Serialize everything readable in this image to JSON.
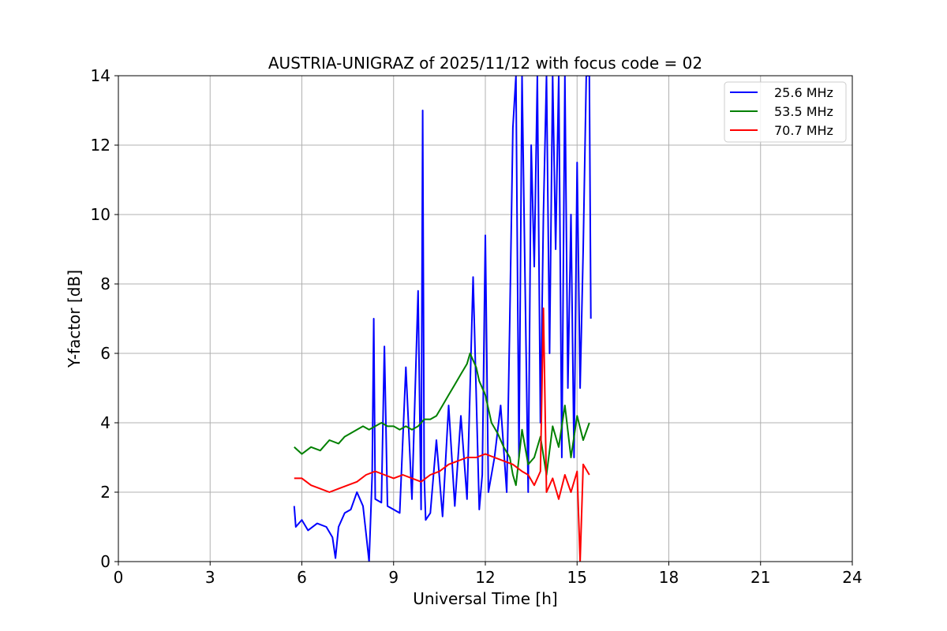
{
  "chart_data": {
    "type": "line",
    "title": "AUSTRIA-UNIGRAZ of 2025/11/12 with focus code = 02",
    "xlabel": "Universal Time [h]",
    "ylabel": "Y-factor [dB]",
    "xlim": [
      0,
      24
    ],
    "ylim": [
      0,
      14
    ],
    "xticks": [
      0,
      3,
      6,
      9,
      12,
      15,
      18,
      21,
      24
    ],
    "yticks": [
      0,
      2,
      4,
      6,
      8,
      10,
      12,
      14
    ],
    "grid": true,
    "legend_position": "top-right",
    "series": [
      {
        "name": "25.6 MHz",
        "color": "#0000ff",
        "x": [
          5.75,
          5.8,
          6.0,
          6.2,
          6.5,
          6.8,
          7.0,
          7.1,
          7.2,
          7.4,
          7.6,
          7.8,
          8.0,
          8.1,
          8.2,
          8.3,
          8.35,
          8.4,
          8.6,
          8.7,
          8.8,
          9.0,
          9.2,
          9.4,
          9.6,
          9.8,
          9.9,
          9.95,
          10.0,
          10.05,
          10.2,
          10.4,
          10.6,
          10.8,
          11.0,
          11.2,
          11.4,
          11.6,
          11.8,
          11.9,
          12.0,
          12.1,
          12.3,
          12.5,
          12.7,
          12.8,
          12.9,
          13.0,
          13.1,
          13.2,
          13.3,
          13.4,
          13.5,
          13.6,
          13.7,
          13.8,
          13.9,
          14.0,
          14.1,
          14.2,
          14.3,
          14.4,
          14.5,
          14.6,
          14.7,
          14.8,
          14.9,
          15.0,
          15.1,
          15.2,
          15.3,
          15.4,
          15.45
        ],
        "y": [
          1.6,
          1.0,
          1.2,
          0.9,
          1.1,
          1.0,
          0.7,
          0.1,
          1.0,
          1.4,
          1.5,
          2.0,
          1.6,
          0.8,
          0.0,
          2.5,
          7.0,
          1.8,
          1.7,
          6.2,
          1.6,
          1.5,
          1.4,
          5.6,
          1.8,
          7.8,
          1.5,
          13.0,
          2.5,
          1.2,
          1.4,
          3.5,
          1.3,
          4.5,
          1.6,
          4.2,
          1.8,
          8.2,
          1.5,
          2.5,
          9.4,
          2.0,
          3.0,
          4.5,
          2.0,
          7.0,
          12.5,
          14.0,
          3.0,
          14.0,
          8.0,
          2.0,
          12.0,
          8.5,
          14.0,
          4.0,
          10.0,
          14.0,
          6.0,
          14.0,
          9.0,
          14.0,
          3.0,
          14.0,
          5.0,
          10.0,
          3.0,
          11.5,
          5.0,
          9.0,
          14.0,
          14.0,
          7.0
        ]
      },
      {
        "name": "53.5 MHz",
        "color": "#008000",
        "x": [
          5.75,
          6.0,
          6.3,
          6.6,
          6.9,
          7.2,
          7.4,
          7.6,
          7.8,
          8.0,
          8.2,
          8.4,
          8.6,
          8.8,
          9.0,
          9.2,
          9.4,
          9.6,
          9.8,
          10.0,
          10.2,
          10.4,
          10.6,
          10.8,
          11.0,
          11.2,
          11.4,
          11.5,
          11.6,
          11.7,
          11.8,
          12.0,
          12.2,
          12.4,
          12.6,
          12.8,
          12.9,
          13.0,
          13.2,
          13.4,
          13.6,
          13.8,
          14.0,
          14.2,
          14.4,
          14.6,
          14.8,
          15.0,
          15.2,
          15.4
        ],
        "y": [
          3.3,
          3.1,
          3.3,
          3.2,
          3.5,
          3.4,
          3.6,
          3.7,
          3.8,
          3.9,
          3.8,
          3.9,
          4.0,
          3.9,
          3.9,
          3.8,
          3.9,
          3.8,
          3.9,
          4.1,
          4.1,
          4.2,
          4.5,
          4.8,
          5.1,
          5.4,
          5.7,
          6.0,
          5.8,
          5.6,
          5.2,
          4.8,
          4.0,
          3.7,
          3.3,
          3.0,
          2.5,
          2.2,
          3.8,
          2.8,
          3.0,
          3.6,
          2.5,
          3.9,
          3.3,
          4.5,
          3.0,
          4.2,
          3.5,
          4.0
        ]
      },
      {
        "name": "70.7 MHz",
        "color": "#ff0000",
        "x": [
          5.75,
          6.0,
          6.3,
          6.6,
          6.9,
          7.2,
          7.5,
          7.8,
          8.1,
          8.4,
          8.7,
          9.0,
          9.3,
          9.6,
          9.9,
          10.2,
          10.5,
          10.8,
          11.1,
          11.4,
          11.7,
          12.0,
          12.3,
          12.6,
          12.9,
          13.2,
          13.4,
          13.6,
          13.8,
          13.9,
          14.0,
          14.2,
          14.4,
          14.6,
          14.8,
          15.0,
          15.1,
          15.2,
          15.4
        ],
        "y": [
          2.4,
          2.4,
          2.2,
          2.1,
          2.0,
          2.1,
          2.2,
          2.3,
          2.5,
          2.6,
          2.5,
          2.4,
          2.5,
          2.4,
          2.3,
          2.5,
          2.6,
          2.8,
          2.9,
          3.0,
          3.0,
          3.1,
          3.0,
          2.9,
          2.8,
          2.6,
          2.5,
          2.2,
          2.6,
          7.3,
          2.0,
          2.4,
          1.8,
          2.5,
          2.0,
          2.6,
          0.0,
          2.8,
          2.5
        ]
      }
    ]
  }
}
